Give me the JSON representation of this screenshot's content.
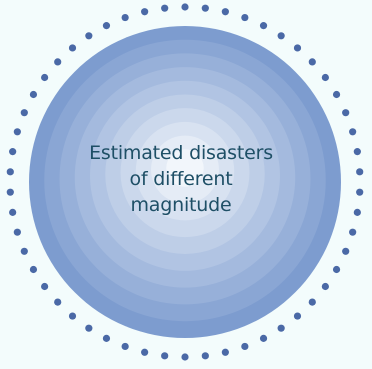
{
  "diagram": {
    "label_lines": [
      "Estimated disasters",
      "of different",
      "magnitude"
    ]
  },
  "colors": {
    "background": "#f3fcfc",
    "dot": "#4a69a6",
    "circle_outer": "#7d9ccf",
    "circle_inner": "#f2f6fb",
    "text": "#1e4f66"
  }
}
